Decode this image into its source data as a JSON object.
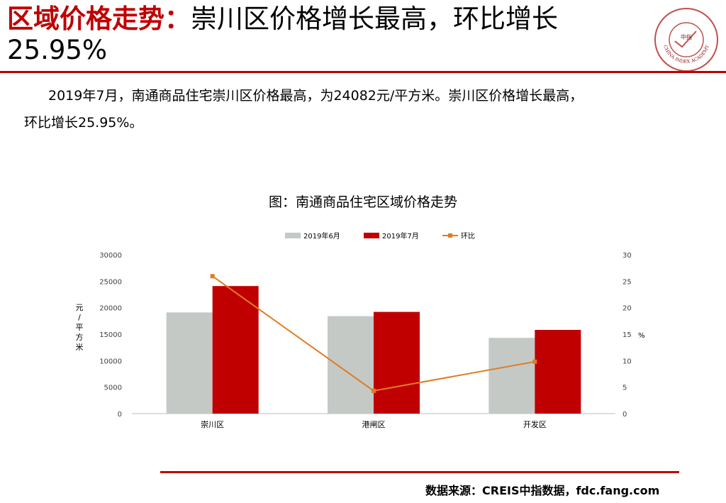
{
  "header": {
    "title_highlight": "区域价格走势：",
    "title_rest": "崇川区价格增长最高，环比增长",
    "title_line2": "25.95%",
    "logo_text": "CHINA INDEX ACADEMY",
    "logo_center": "中指",
    "colors": {
      "accent": "#c00000"
    }
  },
  "body": {
    "paragraph_line1": "2019年7月，南通商品住宅崇川区价格最高，为24082元/平方米。崇川区价格增长最高，",
    "paragraph_line2": "环比增长25.95%。"
  },
  "chart_data": {
    "type": "bar",
    "title": "图：南通商品住宅区域价格走势",
    "categories": [
      "崇川区",
      "港闸区",
      "开发区"
    ],
    "series": [
      {
        "name": "2019年6月",
        "type": "bar",
        "axis": "left",
        "color": "#c4c9c6",
        "values": [
          19100,
          18400,
          14300
        ]
      },
      {
        "name": "2019年7月",
        "type": "bar",
        "axis": "left",
        "color": "#c00000",
        "values": [
          24082,
          19200,
          15800
        ]
      },
      {
        "name": "环比",
        "type": "line",
        "axis": "right",
        "color": "#e07b22",
        "values": [
          25.95,
          4.3,
          9.8
        ]
      }
    ],
    "ylabel": "元/平方米",
    "ylim": [
      0,
      30000
    ],
    "yticks": [
      "30000",
      "25000",
      "20000",
      "15000",
      "10000",
      "5000",
      "0"
    ],
    "y2label": "%",
    "y2lim": [
      0,
      30
    ],
    "y2ticks": [
      "30",
      "25",
      "20",
      "15",
      "10",
      "5",
      "0"
    ],
    "grid": false,
    "legend": "top-center"
  },
  "footer": {
    "source": "数据来源：CREIS中指数据，fdc.fang.com"
  }
}
